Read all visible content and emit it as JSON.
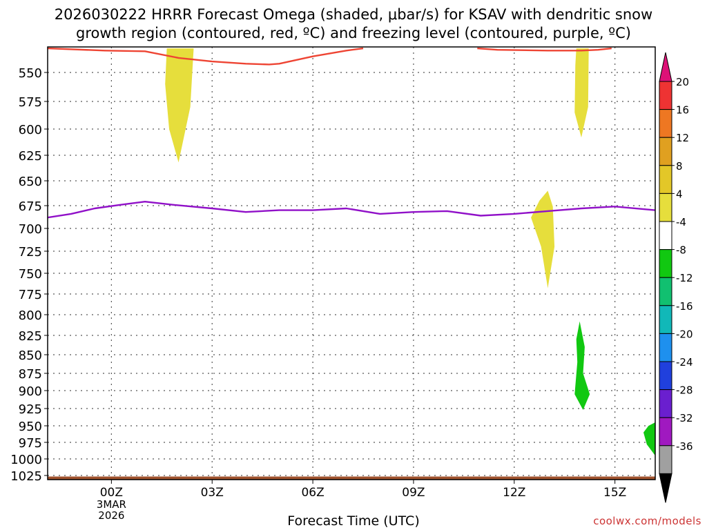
{
  "chart_data": {
    "type": "time-height",
    "title_line1": "2026030222 HRRR Forecast Omega (shaded, μbar/s) for KSAV with dendritic snow",
    "title_line2": "growth region (contoured, red, ºC) and freezing level (contoured, purple, ºC)",
    "xlabel": "Forecast Time (UTC)",
    "xlim_hours": [
      -1.9,
      16.2
    ],
    "x_ticks": [
      {
        "hour": 0,
        "label": "00Z"
      },
      {
        "hour": 3,
        "label": "03Z"
      },
      {
        "hour": 6,
        "label": "06Z"
      },
      {
        "hour": 9,
        "label": "09Z"
      },
      {
        "hour": 12,
        "label": "12Z"
      },
      {
        "hour": 15,
        "label": "15Z"
      }
    ],
    "date_label": [
      "3MAR",
      "2026"
    ],
    "y_ticks": [
      550,
      575,
      600,
      625,
      650,
      675,
      700,
      725,
      750,
      775,
      800,
      825,
      850,
      875,
      900,
      925,
      950,
      975,
      1000,
      1025
    ],
    "ylim_hpa": [
      515,
      1033
    ],
    "colorbar": {
      "labels": [
        "20",
        "16",
        "12",
        "8",
        "4",
        "-4",
        "-8",
        "-12",
        "-16",
        "-20",
        "-24",
        "-28",
        "-32",
        "-36"
      ],
      "bands": [
        {
          "color": "#ee3333"
        },
        {
          "color": "#ee7722"
        },
        {
          "color": "#e0a020"
        },
        {
          "color": "#e3c728"
        },
        {
          "color": "#e6de3c"
        },
        {
          "color": "#ffffff"
        },
        {
          "color": "#11c811"
        },
        {
          "color": "#11c070"
        },
        {
          "color": "#11b8b8"
        },
        {
          "color": "#1e90ee"
        },
        {
          "color": "#2040dd"
        },
        {
          "color": "#6a1fcf"
        },
        {
          "color": "#a019c0"
        },
        {
          "color": "#a0a0a0"
        }
      ],
      "top_arrow_color": "#dd1177",
      "bottom_arrow_color": "#000000"
    },
    "snow_growth_region_color": "#ee4433",
    "snow_growth_region_top_hpa": [
      [
        -1.9,
        517
      ],
      [
        -0.2,
        520
      ],
      [
        1,
        521
      ],
      [
        2,
        530
      ],
      [
        3,
        535
      ],
      [
        4,
        538
      ],
      [
        4.7,
        539
      ],
      [
        5,
        538
      ],
      [
        6,
        528
      ],
      [
        7,
        520
      ],
      [
        7.5,
        517
      ]
    ],
    "snow_growth_region_right_hpa": [
      [
        10.9,
        517
      ],
      [
        11.5,
        519
      ],
      [
        13,
        520
      ],
      [
        14,
        520
      ],
      [
        14.5,
        519
      ],
      [
        14.9,
        517
      ]
    ],
    "freezing_level_color": "#9010c8",
    "freezing_level_hpa": [
      [
        -1.9,
        688
      ],
      [
        -1.2,
        684
      ],
      [
        -0.5,
        678
      ],
      [
        0.3,
        674
      ],
      [
        1,
        671
      ],
      [
        1.8,
        674
      ],
      [
        3,
        678
      ],
      [
        4,
        682
      ],
      [
        5,
        680
      ],
      [
        6,
        680
      ],
      [
        7,
        678
      ],
      [
        8,
        684
      ],
      [
        9,
        682
      ],
      [
        10,
        681
      ],
      [
        11,
        686
      ],
      [
        12,
        684
      ],
      [
        13,
        681
      ],
      [
        14,
        678
      ],
      [
        15,
        676
      ],
      [
        16.2,
        680
      ]
    ],
    "omega_regions": [
      {
        "value_band": "4 to 8",
        "color": "#e6de3c",
        "outline_hpa": [
          [
            1.65,
            517
          ],
          [
            2.45,
            517
          ],
          [
            2.35,
            580
          ],
          [
            2.0,
            632
          ],
          [
            1.72,
            600
          ],
          [
            1.6,
            560
          ]
        ]
      },
      {
        "value_band": "4 to 8",
        "color": "#e6de3c",
        "outline_hpa": [
          [
            13.85,
            517
          ],
          [
            14.22,
            517
          ],
          [
            14.2,
            580
          ],
          [
            14.0,
            608
          ],
          [
            13.8,
            585
          ],
          [
            13.82,
            540
          ]
        ]
      },
      {
        "value_band": "4 to 8",
        "color": "#e6de3c",
        "outline_hpa": [
          [
            12.5,
            688
          ],
          [
            12.75,
            670
          ],
          [
            13.0,
            660
          ],
          [
            13.15,
            676
          ],
          [
            13.2,
            720
          ],
          [
            13.0,
            768
          ],
          [
            12.8,
            720
          ]
        ]
      },
      {
        "value_band": "-4 to -8",
        "color": "#11c811",
        "outline_hpa": [
          [
            13.95,
            808
          ],
          [
            14.1,
            840
          ],
          [
            14.05,
            875
          ],
          [
            14.25,
            905
          ],
          [
            14.05,
            927
          ],
          [
            13.8,
            905
          ],
          [
            13.88,
            860
          ],
          [
            13.85,
            830
          ]
        ]
      },
      {
        "value_band": "-4 to -8",
        "color": "#11c811",
        "outline_hpa": [
          [
            16.2,
            945
          ],
          [
            16.2,
            995
          ],
          [
            15.95,
            978
          ],
          [
            15.85,
            960
          ],
          [
            16.0,
            950
          ]
        ]
      }
    ],
    "ground_color": "#a0522d",
    "ground_top_hpa": 1027
  },
  "watermark": "coolwx.com/models"
}
